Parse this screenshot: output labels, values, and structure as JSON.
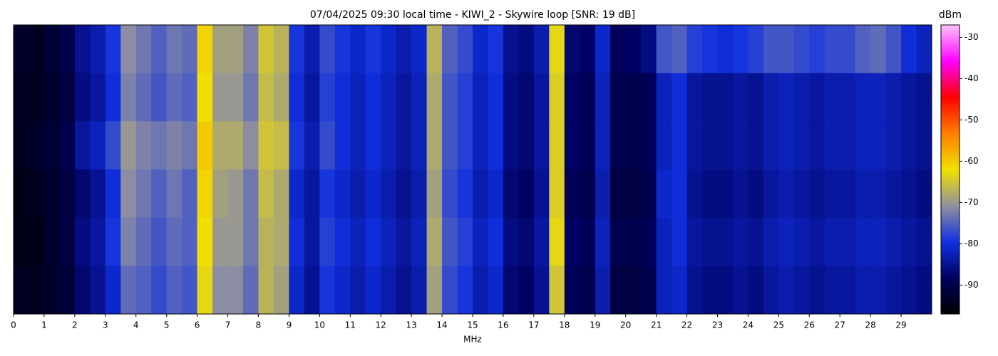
{
  "chart_data": {
    "type": "heatmap",
    "title": "07/04/2025 09:30 local time - KIWI_2 - Skywire loop [SNR: 19 dB]",
    "xlabel": "MHz",
    "colorbar_label": "dBm",
    "xlim": [
      0,
      30
    ],
    "xticks": [
      0,
      1,
      2,
      3,
      4,
      5,
      6,
      7,
      8,
      9,
      10,
      11,
      12,
      13,
      14,
      15,
      16,
      17,
      18,
      19,
      20,
      21,
      22,
      23,
      24,
      25,
      26,
      27,
      28,
      29
    ],
    "bins": [
      0,
      0.5,
      1,
      1.5,
      2,
      2.5,
      3,
      3.5,
      4,
      4.5,
      5,
      5.5,
      6,
      6.5,
      7,
      7.5,
      8,
      8.5,
      9,
      9.5,
      10,
      10.5,
      11,
      11.5,
      12,
      12.5,
      13,
      13.5,
      14,
      14.5,
      15,
      15.5,
      16,
      16.5,
      17,
      17.5,
      18,
      18.5,
      19,
      19.5,
      20,
      20.5,
      21,
      21.5,
      22,
      22.5,
      23,
      23.5,
      24,
      24.5,
      25,
      25.5,
      26,
      26.5,
      27,
      27.5,
      28,
      28.5,
      29,
      29.5,
      30
    ],
    "zlim": [
      -97,
      -27
    ],
    "zticks": [
      -90,
      -80,
      -70,
      -60,
      -50,
      -40,
      -30
    ],
    "colors": [
      "#000000",
      "#000060",
      "#1030e0",
      "#9090a0",
      "#f0e000",
      "#ff8000",
      "#ff0000",
      "#ff00ff",
      "#ffc0ff"
    ],
    "z": [
      [
        -93,
        -94,
        -92,
        -90,
        -85,
        -83,
        -79,
        -71,
        -73,
        -75,
        -73,
        -74,
        -61,
        -69,
        -69,
        -72,
        -65,
        -67,
        -79,
        -83,
        -77,
        -79,
        -81,
        -79,
        -81,
        -83,
        -81,
        -67,
        -75,
        -77,
        -81,
        -79,
        -85,
        -86,
        -83,
        -63,
        -87,
        -88,
        -81,
        -89,
        -88,
        -86,
        -76,
        -75,
        -78,
        -79,
        -80,
        -79,
        -78,
        -76,
        -76,
        -77,
        -78,
        -77,
        -77,
        -75,
        -74,
        -76,
        -80,
        -82
      ],
      [
        -94,
        -94,
        -93,
        -91,
        -86,
        -84,
        -80,
        -72,
        -74,
        -76,
        -74,
        -75,
        -62,
        -70,
        -70,
        -73,
        -66,
        -68,
        -80,
        -84,
        -78,
        -80,
        -82,
        -80,
        -82,
        -84,
        -82,
        -68,
        -76,
        -78,
        -82,
        -80,
        -86,
        -87,
        -84,
        -64,
        -88,
        -89,
        -82,
        -90,
        -90,
        -89,
        -82,
        -80,
        -84,
        -85,
        -85,
        -84,
        -85,
        -83,
        -82,
        -83,
        -84,
        -83,
        -83,
        -82,
        -82,
        -83,
        -84,
        -85
      ],
      [
        -94,
        -93,
        -92,
        -90,
        -84,
        -82,
        -77,
        -70,
        -72,
        -73,
        -72,
        -73,
        -60,
        -68,
        -68,
        -71,
        -65,
        -66,
        -79,
        -83,
        -77,
        -80,
        -82,
        -80,
        -82,
        -84,
        -82,
        -68,
        -76,
        -78,
        -82,
        -80,
        -86,
        -87,
        -84,
        -64,
        -88,
        -89,
        -82,
        -90,
        -90,
        -89,
        -82,
        -80,
        -84,
        -85,
        -85,
        -84,
        -85,
        -83,
        -82,
        -83,
        -84,
        -83,
        -83,
        -82,
        -82,
        -83,
        -84,
        -85
      ],
      [
        -95,
        -94,
        -93,
        -91,
        -87,
        -85,
        -80,
        -71,
        -73,
        -75,
        -73,
        -75,
        -61,
        -69,
        -70,
        -73,
        -66,
        -68,
        -81,
        -84,
        -79,
        -81,
        -83,
        -81,
        -83,
        -85,
        -83,
        -69,
        -77,
        -79,
        -83,
        -81,
        -87,
        -88,
        -85,
        -64,
        -89,
        -90,
        -83,
        -91,
        -91,
        -90,
        -81,
        -80,
        -85,
        -86,
        -86,
        -85,
        -86,
        -84,
        -83,
        -84,
        -85,
        -84,
        -84,
        -83,
        -83,
        -84,
        -85,
        -86
      ],
      [
        -95,
        -95,
        -93,
        -91,
        -86,
        -84,
        -79,
        -72,
        -74,
        -76,
        -74,
        -75,
        -62,
        -70,
        -70,
        -73,
        -67,
        -68,
        -80,
        -84,
        -78,
        -80,
        -82,
        -80,
        -82,
        -84,
        -82,
        -68,
        -76,
        -78,
        -82,
        -80,
        -86,
        -87,
        -84,
        -63,
        -88,
        -89,
        -82,
        -90,
        -90,
        -89,
        -82,
        -80,
        -84,
        -85,
        -85,
        -84,
        -85,
        -83,
        -82,
        -83,
        -84,
        -83,
        -83,
        -82,
        -82,
        -83,
        -84,
        -85
      ],
      [
        -94,
        -94,
        -93,
        -92,
        -87,
        -85,
        -81,
        -74,
        -75,
        -77,
        -75,
        -76,
        -63,
        -71,
        -71,
        -74,
        -67,
        -69,
        -81,
        -85,
        -79,
        -81,
        -83,
        -81,
        -83,
        -85,
        -83,
        -69,
        -77,
        -79,
        -83,
        -81,
        -87,
        -88,
        -85,
        -65,
        -89,
        -90,
        -83,
        -91,
        -91,
        -90,
        -82,
        -81,
        -85,
        -86,
        -86,
        -85,
        -86,
        -84,
        -83,
        -84,
        -85,
        -84,
        -84,
        -83,
        -83,
        -84,
        -85,
        -86
      ]
    ]
  }
}
